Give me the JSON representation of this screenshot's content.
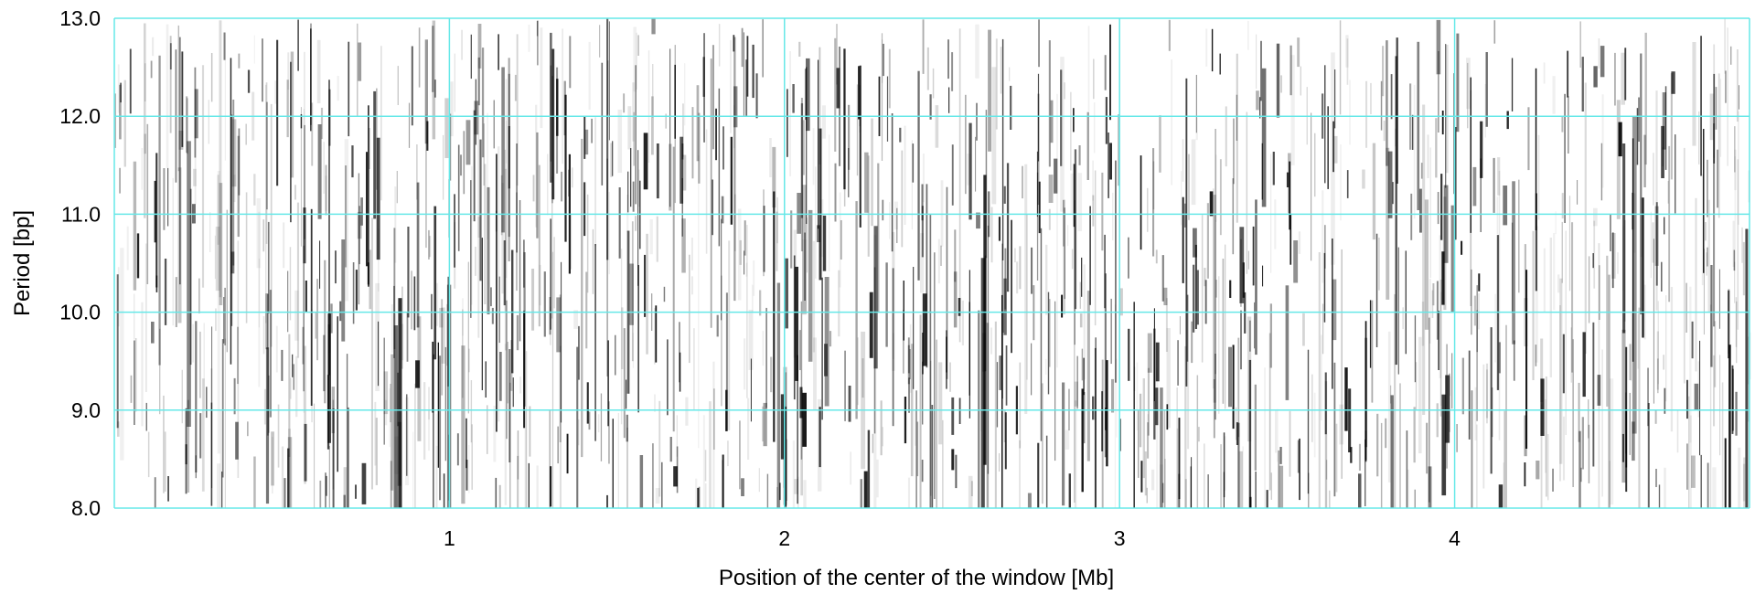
{
  "chart_data": {
    "type": "heatmap",
    "title": "",
    "xlabel": "Position of the center of the window [Mb]",
    "ylabel": "Period [bp]",
    "xlim": [
      0.0,
      4.88
    ],
    "ylim": [
      8.0,
      13.0
    ],
    "x_ticks": [
      {
        "value": 1,
        "label": "1"
      },
      {
        "value": 2,
        "label": "2"
      },
      {
        "value": 3,
        "label": "3"
      },
      {
        "value": 4,
        "label": "4"
      }
    ],
    "y_ticks": [
      {
        "value": 8.0,
        "label": "8.0"
      },
      {
        "value": 9.0,
        "label": "9.0"
      },
      {
        "value": 10.0,
        "label": "10.0"
      },
      {
        "value": 11.0,
        "label": "11.0"
      },
      {
        "value": 12.0,
        "label": "12.0"
      },
      {
        "value": 13.0,
        "label": "13.0"
      }
    ],
    "grid": true,
    "grid_color": "#66e8e8",
    "colormap": [
      "#ffffff",
      "#000000"
    ]
  }
}
